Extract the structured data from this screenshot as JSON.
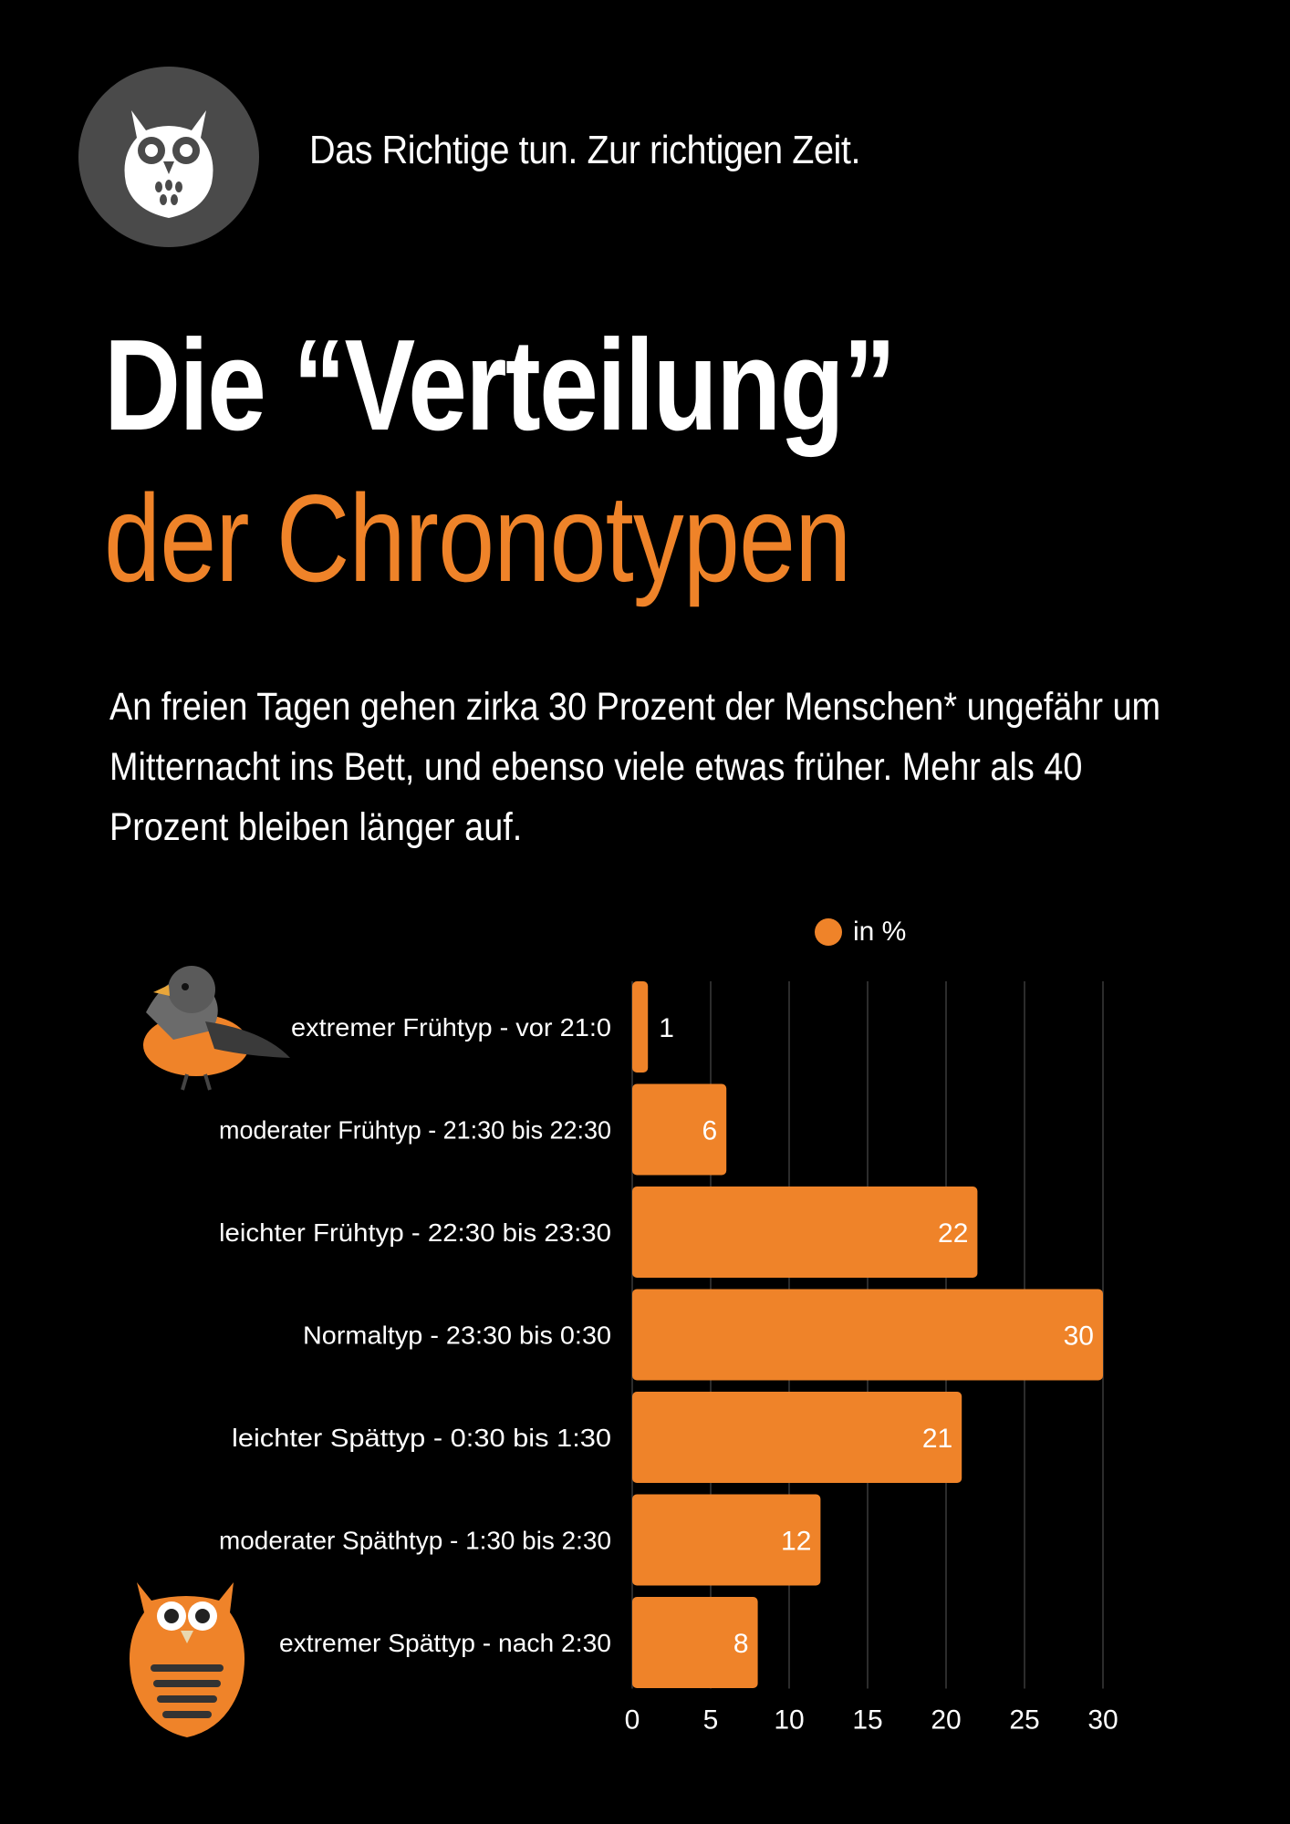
{
  "header": {
    "logo_icon": "owl-icon",
    "tagline": "Das Richtige tun. Zur richtigen Zeit."
  },
  "title": {
    "line1": "Die “Verteilung”",
    "line2": "der Chronotypen"
  },
  "intro": "An freien Tagen gehen zirka 30 Prozent der Menschen* ungefähr um Mitternacht ins Bett, und ebenso viele etwas früher. Mehr als 40 Prozent bleiben länger auf.",
  "legend": {
    "label": "in %"
  },
  "illustrations": {
    "top": "bird-icon",
    "bottom": "owl-icon"
  },
  "colors": {
    "accent": "#ef8329",
    "background": "#000000",
    "text": "#ffffff",
    "logo_bg": "#4a4a4a"
  },
  "chart_data": {
    "type": "bar",
    "orientation": "horizontal",
    "categories": [
      "extremer Frühtyp - vor 21:0",
      "moderater Frühtyp - 21:30 bis 22:30",
      "leichter Frühtyp - 22:30 bis 23:30",
      "Normaltyp - 23:30 bis 0:30",
      "leichter Spättyp - 0:30 bis 1:30",
      "moderater Späthtyp - 1:30 bis 2:30",
      "extremer Spättyp - nach 2:30"
    ],
    "series": [
      {
        "name": "in %",
        "values": [
          1,
          6,
          22,
          30,
          21,
          12,
          8
        ]
      }
    ],
    "xlim": [
      0,
      30
    ],
    "xticks": [
      "0",
      "5",
      "10",
      "15",
      "20",
      "25",
      "30"
    ],
    "grid": true,
    "legend_position": "top"
  }
}
